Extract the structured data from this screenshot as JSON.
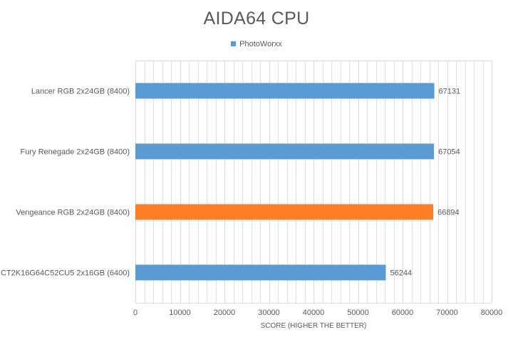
{
  "chart_data": {
    "type": "bar",
    "orientation": "horizontal",
    "title": "AIDA64 CPU",
    "xlabel": "SCORE (HIGHER THE BETTER)",
    "ylabel": "",
    "xlim": [
      0,
      80000
    ],
    "x_ticks": [
      "0",
      "10000",
      "20000",
      "30000",
      "40000",
      "50000",
      "60000",
      "70000",
      "80000"
    ],
    "grid": true,
    "legend_position": "top",
    "categories": [
      "Lancer RGB 2x24GB (8400)",
      "Fury Renegade 2x24GB (8400)",
      "Vengeance RGB 2x24GB (8400)",
      "CT2K16G64C52CU5 2x16GB (6400)"
    ],
    "series": [
      {
        "name": "PhotoWorxx",
        "values": [
          67131,
          67054,
          66894,
          56244
        ],
        "colors": [
          "#5B9BD5",
          "#5B9BD5",
          "#FF7F27",
          "#5B9BD5"
        ]
      }
    ],
    "data_labels": [
      "67131",
      "67054",
      "66894",
      "56244"
    ]
  },
  "colors": {
    "series": "#5B9BD5",
    "highlight": "#FF7F27",
    "text": "#595959",
    "grid": "#D9D9D9"
  }
}
